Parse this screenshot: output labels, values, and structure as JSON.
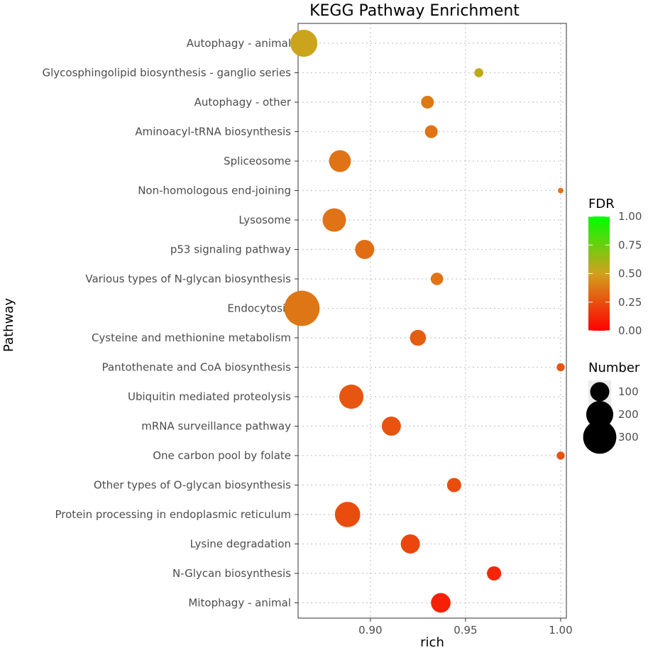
{
  "chart_data": {
    "type": "scatter",
    "title": "KEGG Pathway Enrichment",
    "xlabel": "rich",
    "ylabel": "Pathway",
    "xlim": [
      0.862,
      1.003
    ],
    "x_ticks": [
      0.9,
      0.95,
      1.0
    ],
    "x_tick_labels": [
      "0.90",
      "0.95",
      "1.00"
    ],
    "grid": true,
    "points": [
      {
        "pathway": "Autophagy - animal",
        "rich": 0.865,
        "number": 200,
        "fdr": 0.52
      },
      {
        "pathway": "Glycosphingolipid biosynthesis - ganglio series",
        "rich": 0.957,
        "number": 22,
        "fdr": 0.55
      },
      {
        "pathway": "Autophagy - other",
        "rich": 0.93,
        "number": 45,
        "fdr": 0.38
      },
      {
        "pathway": "Aminoacyl-tRNA biosynthesis",
        "rich": 0.932,
        "number": 45,
        "fdr": 0.36
      },
      {
        "pathway": "Spliceosome",
        "rich": 0.884,
        "number": 130,
        "fdr": 0.36
      },
      {
        "pathway": "Non-homologous end-joining",
        "rich": 1.0,
        "number": 8,
        "fdr": 0.36
      },
      {
        "pathway": "Lysosome",
        "rich": 0.881,
        "number": 150,
        "fdr": 0.36
      },
      {
        "pathway": "p53 signaling pathway",
        "rich": 0.897,
        "number": 100,
        "fdr": 0.34
      },
      {
        "pathway": "Various types of N-glycan biosynthesis",
        "rich": 0.935,
        "number": 42,
        "fdr": 0.36
      },
      {
        "pathway": "Endocytosis",
        "rich": 0.864,
        "number": 340,
        "fdr": 0.37
      },
      {
        "pathway": "Cysteine and methionine metabolism",
        "rich": 0.925,
        "number": 70,
        "fdr": 0.29
      },
      {
        "pathway": "Pantothenate and CoA biosynthesis",
        "rich": 1.0,
        "number": 18,
        "fdr": 0.27
      },
      {
        "pathway": "Ubiquitin mediated proteolysis",
        "rich": 0.89,
        "number": 160,
        "fdr": 0.27
      },
      {
        "pathway": "mRNA surveillance pathway",
        "rich": 0.911,
        "number": 100,
        "fdr": 0.26
      },
      {
        "pathway": "One carbon pool by folate",
        "rich": 1.0,
        "number": 18,
        "fdr": 0.26
      },
      {
        "pathway": "Other types of O-glycan biosynthesis",
        "rich": 0.944,
        "number": 55,
        "fdr": 0.24
      },
      {
        "pathway": "Protein processing in endoplasmic reticulum",
        "rich": 0.888,
        "number": 175,
        "fdr": 0.24
      },
      {
        "pathway": "Lysine degradation",
        "rich": 0.921,
        "number": 100,
        "fdr": 0.22
      },
      {
        "pathway": "N-Glycan biosynthesis",
        "rich": 0.965,
        "number": 55,
        "fdr": 0.12
      },
      {
        "pathway": "Mitophagy - animal",
        "rich": 0.937,
        "number": 105,
        "fdr": 0.1
      }
    ],
    "legend_fdr": {
      "title": "FDR",
      "ticks": [
        1.0,
        0.75,
        0.5,
        0.25,
        0.0
      ],
      "tick_labels": [
        "1.00",
        "0.75",
        "0.50",
        "0.25",
        "0.00"
      ],
      "color_low": "#ff0000",
      "color_mid": "#d2a01e",
      "color_high": "#00ff00",
      "placement": "right"
    },
    "legend_number": {
      "title": "Number",
      "values": [
        100,
        200,
        300
      ],
      "labels": [
        "100",
        "200",
        "300"
      ],
      "placement": "right"
    }
  }
}
